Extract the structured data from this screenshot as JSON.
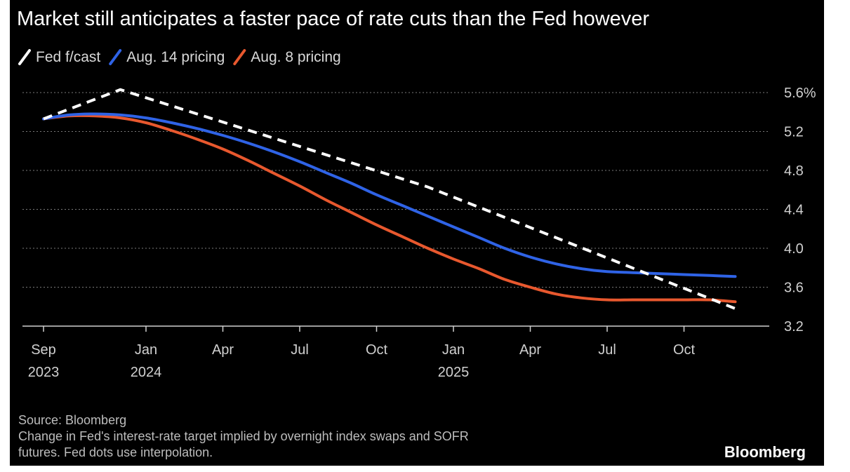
{
  "chart_data": {
    "type": "line",
    "title": "Market still anticipates a faster pace of rate cuts than the Fed however",
    "y_axis": {
      "ticks": [
        "5.6%",
        "5.2",
        "4.8",
        "4.4",
        "4.0",
        "3.6",
        "3.2"
      ],
      "ylim": [
        3.2,
        5.6
      ]
    },
    "x_axis": {
      "ticks": [
        {
          "date": "2023-09",
          "label": "Sep",
          "year": "2023"
        },
        {
          "date": "2024-01",
          "label": "Jan",
          "year": "2024"
        },
        {
          "date": "2024-04",
          "label": "Apr",
          "year": ""
        },
        {
          "date": "2024-07",
          "label": "Jul",
          "year": ""
        },
        {
          "date": "2024-10",
          "label": "Oct",
          "year": ""
        },
        {
          "date": "2025-01",
          "label": "Jan",
          "year": "2025"
        },
        {
          "date": "2025-04",
          "label": "Apr",
          "year": ""
        },
        {
          "date": "2025-07",
          "label": "Jul",
          "year": ""
        },
        {
          "date": "2025-10",
          "label": "Oct",
          "year": ""
        }
      ]
    },
    "grid": "horizontal dotted",
    "legend_position": "top-left",
    "series": [
      {
        "name": "Fed f/cast",
        "color": "#ffffff",
        "style": "dashed",
        "x": [
          "2023-09",
          "2023-12",
          "2024-12",
          "2025-12"
        ],
        "y": [
          5.33,
          5.63,
          4.63,
          3.38
        ]
      },
      {
        "name": "Aug. 14 pricing",
        "color": "#2f63e6",
        "style": "solid",
        "x": [
          "2023-09",
          "2023-10",
          "2023-11",
          "2023-12",
          "2024-01",
          "2024-02",
          "2024-03",
          "2024-04",
          "2024-05",
          "2024-06",
          "2024-07",
          "2024-08",
          "2024-09",
          "2024-10",
          "2024-11",
          "2024-12",
          "2025-01",
          "2025-02",
          "2025-03",
          "2025-04",
          "2025-05",
          "2025-06",
          "2025-07",
          "2025-08",
          "2025-09",
          "2025-10",
          "2025-11",
          "2025-12"
        ],
        "y": [
          5.33,
          5.37,
          5.38,
          5.37,
          5.34,
          5.29,
          5.23,
          5.16,
          5.08,
          4.99,
          4.89,
          4.78,
          4.67,
          4.55,
          4.44,
          4.33,
          4.22,
          4.11,
          4.0,
          3.91,
          3.84,
          3.79,
          3.76,
          3.75,
          3.74,
          3.73,
          3.72,
          3.71
        ]
      },
      {
        "name": "Aug. 8 pricing",
        "color": "#e8582e",
        "style": "solid",
        "x": [
          "2023-09",
          "2023-10",
          "2023-11",
          "2023-12",
          "2024-01",
          "2024-02",
          "2024-03",
          "2024-04",
          "2024-05",
          "2024-06",
          "2024-07",
          "2024-08",
          "2024-09",
          "2024-10",
          "2024-11",
          "2024-12",
          "2025-01",
          "2025-02",
          "2025-03",
          "2025-04",
          "2025-05",
          "2025-06",
          "2025-07",
          "2025-08",
          "2025-09",
          "2025-10",
          "2025-11",
          "2025-12"
        ],
        "y": [
          5.33,
          5.36,
          5.36,
          5.34,
          5.29,
          5.21,
          5.12,
          5.02,
          4.9,
          4.77,
          4.64,
          4.5,
          4.37,
          4.24,
          4.12,
          4.0,
          3.89,
          3.79,
          3.68,
          3.6,
          3.53,
          3.49,
          3.47,
          3.47,
          3.47,
          3.47,
          3.47,
          3.45
        ]
      }
    ]
  },
  "source_note": "Source: Bloomberg",
  "footnote_line1": "Change in Fed's interest-rate target implied by overnight index swaps and SOFR",
  "footnote_line2": "futures. Fed dots use interpolation.",
  "brand": "Bloomberg",
  "colors": {
    "background": "#000000",
    "fed": "#ffffff",
    "aug14": "#2f63e6",
    "aug8": "#e8582e"
  }
}
